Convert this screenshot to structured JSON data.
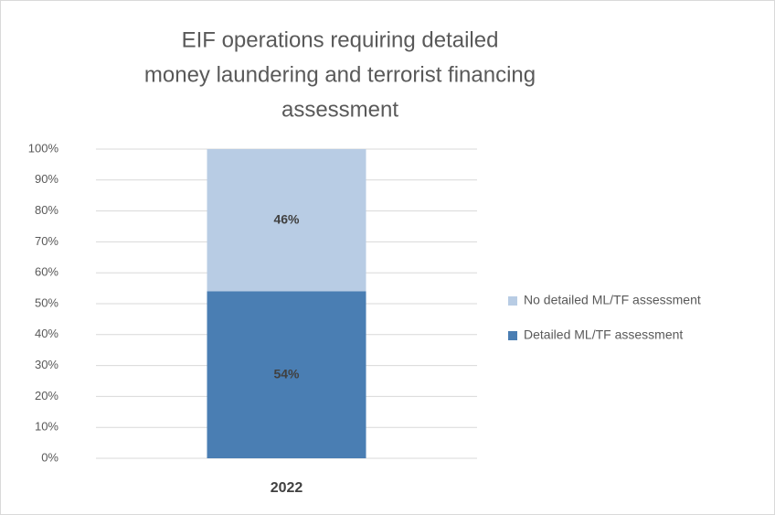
{
  "chart_data": {
    "type": "stacked_bar",
    "title": [
      "EIF operations requiring detailed",
      "money laundering and terrorist financing",
      "assessment"
    ],
    "categories": [
      "2022"
    ],
    "series": [
      {
        "name": "Detailed ML/TF assessment",
        "color": "#4a7eb3",
        "values": [
          54
        ],
        "value_labels": [
          "54%"
        ]
      },
      {
        "name": "No detailed ML/TF assessment",
        "color": "#b8cce4",
        "values": [
          46
        ],
        "value_labels": [
          "46%"
        ]
      }
    ],
    "ylim": [
      0,
      100
    ],
    "yticks": [
      {
        "value": 0,
        "label": "0%"
      },
      {
        "value": 10,
        "label": "10%"
      },
      {
        "value": 20,
        "label": "20%"
      },
      {
        "value": 30,
        "label": "30%"
      },
      {
        "value": 40,
        "label": "40%"
      },
      {
        "value": 50,
        "label": "50%"
      },
      {
        "value": 60,
        "label": "60%"
      },
      {
        "value": 70,
        "label": "70%"
      },
      {
        "value": 80,
        "label": "80%"
      },
      {
        "value": 90,
        "label": "90%"
      },
      {
        "value": 100,
        "label": "100%"
      }
    ],
    "grid": true,
    "legend": "right"
  }
}
